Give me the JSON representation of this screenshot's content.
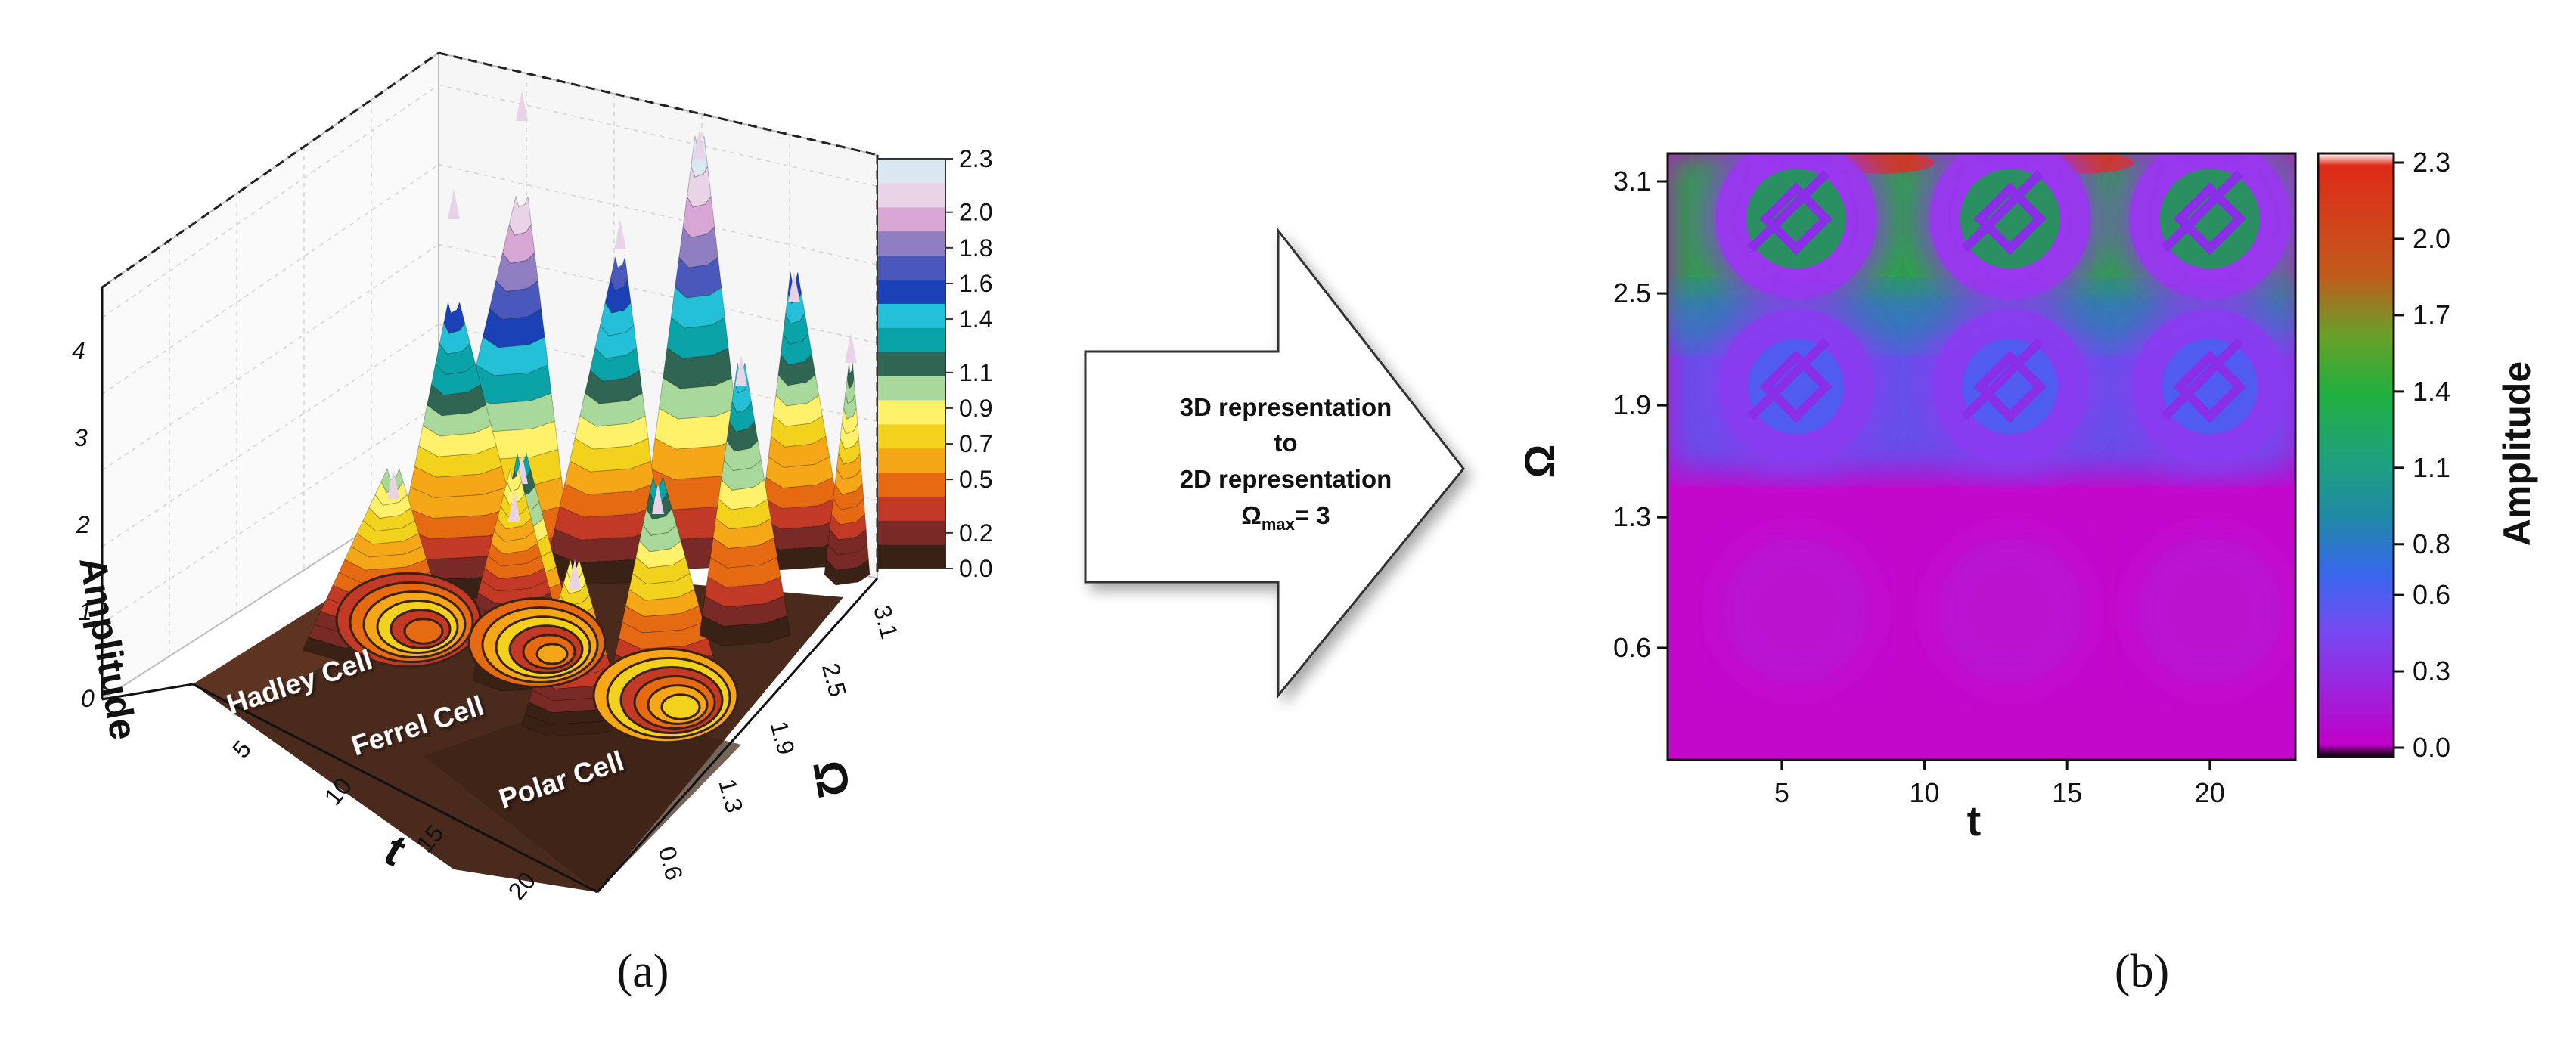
{
  "chart_data": [
    {
      "panel": "(a)",
      "type": "surface3d",
      "zlabel": "Amplitude",
      "xlabel": "t",
      "ylabel": "Ω",
      "z_ticks": [
        "0",
        "1",
        "2",
        "3",
        "4"
      ],
      "x_ticks": [
        "5",
        "10",
        "15",
        "20"
      ],
      "y_ticks": [
        "0.6",
        "1.3",
        "1.9",
        "2.5",
        "3.1"
      ],
      "cells": [
        "Hadley Cell",
        "Ferrel Cell",
        "Polar Cell"
      ],
      "colorbar": {
        "ticks": [
          "0.0",
          "0.2",
          "0.5",
          "0.7",
          "0.9",
          "1.1",
          "1.4",
          "1.6",
          "1.8",
          "2.0",
          "2.3"
        ],
        "range": [
          0.0,
          2.3
        ],
        "bands": [
          "#3a2116",
          "#7a2a26",
          "#c23a26",
          "#e66a12",
          "#f6a717",
          "#f2d21c",
          "#fff26a",
          "#a8d89a",
          "#2f6552",
          "#0aa3a7",
          "#24c0d8",
          "#1a41b6",
          "#4b58bb",
          "#8f7fc2",
          "#d8a6d4",
          "#e9d3e6",
          "#dbe7f2"
        ]
      },
      "peak_values": [
        2.3,
        2.2,
        2.1,
        1.9,
        1.8
      ]
    },
    {
      "panel": "(b)",
      "type": "heatmap",
      "xlabel": "t",
      "ylabel": "Ω",
      "x_ticks": [
        "5",
        "10",
        "15",
        "20"
      ],
      "y_ticks": [
        "0.6",
        "1.3",
        "1.9",
        "2.5",
        "3.1"
      ],
      "xlim": [
        1,
        23
      ],
      "ylim": [
        0,
        3.25
      ],
      "colorbar": {
        "label": "Amplitude",
        "ticks": [
          "0.0",
          "0.3",
          "0.6",
          "0.8",
          "1.1",
          "1.4",
          "1.7",
          "2.0",
          "2.3"
        ],
        "range": [
          0.0,
          2.3
        ],
        "stops": [
          "#000000",
          "#c000c8",
          "#7a46f0",
          "#3a66ee",
          "#1f8aa4",
          "#1ea37a",
          "#20b040",
          "#6aa02a",
          "#c25a1c",
          "#de2a18",
          "#ffffff"
        ]
      },
      "vortices": [
        {
          "t": 5.5,
          "omega": 2.9,
          "amplitude": 1.3
        },
        {
          "t": 13.0,
          "omega": 2.9,
          "amplitude": 1.3
        },
        {
          "t": 20.0,
          "omega": 2.9,
          "amplitude": 1.3
        },
        {
          "t": 5.5,
          "omega": 2.0,
          "amplitude": 0.6
        },
        {
          "t": 13.0,
          "omega": 2.0,
          "amplitude": 0.6
        },
        {
          "t": 20.0,
          "omega": 2.0,
          "amplitude": 0.6
        },
        {
          "t": 5.5,
          "omega": 0.8,
          "amplitude": 0.2
        },
        {
          "t": 13.0,
          "omega": 0.8,
          "amplitude": 0.2
        },
        {
          "t": 20.0,
          "omega": 0.8,
          "amplitude": 0.2
        }
      ]
    }
  ],
  "arrow": {
    "line1": "3D representation",
    "line2": "to",
    "line3": "2D representation",
    "line4_prefix": "Ω",
    "line4_sub": "max",
    "line4_suffix": "= 3"
  },
  "captions": {
    "a": "(a)",
    "b": "(b)"
  }
}
